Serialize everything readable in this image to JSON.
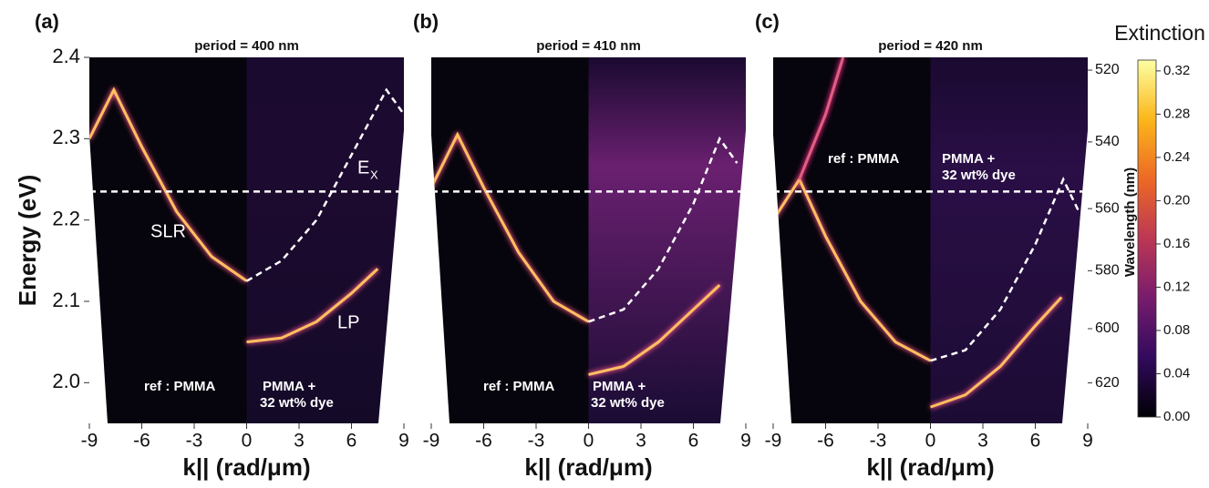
{
  "chart_data": [
    {
      "type": "heatmap",
      "panel_label": "(a)",
      "title": "period = 400 nm",
      "xlabel": "k|| (rad/μm)",
      "ylabel": "Energy (eV)",
      "xlim": [
        -9,
        9
      ],
      "xticks": [
        -9,
        -6,
        -3,
        0,
        3,
        6,
        9
      ],
      "ylim": [
        1.95,
        2.4
      ],
      "yticks": [
        {
          "value": 2,
          "label": "2.0"
        },
        {
          "value": 2.1,
          "label": "2.1"
        },
        {
          "value": 2.2,
          "label": "2.2"
        },
        {
          "value": 2.3,
          "label": "2.3"
        },
        {
          "value": 2.4,
          "label": "2.4"
        }
      ],
      "annotations": [
        "SLR",
        "LP",
        "ref : PMMA",
        "PMMA +",
        "32 wt% dye"
      ],
      "exciton_label": {
        "text": "E",
        "sub": "X"
      },
      "series": [
        {
          "color": "#ffc060",
          "dash": false,
          "x": [
            -9,
            -7.6,
            -6,
            -4,
            -2,
            0
          ],
          "values": [
            2.3,
            2.36,
            2.29,
            2.21,
            2.155,
            2.125
          ]
        },
        {
          "color": "#ffc060",
          "dash": false,
          "x": [
            0,
            2,
            4,
            6,
            7.5
          ],
          "values": [
            2.05,
            2.055,
            2.075,
            2.11,
            2.14
          ]
        },
        {
          "color": "#ffffff",
          "dash": true,
          "x": [
            0,
            2,
            4,
            6,
            8,
            9
          ],
          "values": [
            2.125,
            2.15,
            2.2,
            2.28,
            2.36,
            2.33
          ]
        },
        {
          "color": "#ffffff",
          "dash": true,
          "x": [
            -9,
            9
          ],
          "values": [
            2.235,
            2.235
          ]
        }
      ]
    },
    {
      "type": "heatmap",
      "panel_label": "(b)",
      "title": "period = 410 nm",
      "xlabel": "k|| (rad/μm)",
      "xlim": [
        -9,
        9
      ],
      "xticks": [
        -9,
        -6,
        -3,
        0,
        3,
        6,
        9
      ],
      "ylim": [
        1.95,
        2.4
      ],
      "annotations": [
        "ref : PMMA",
        "PMMA +",
        "32 wt% dye"
      ],
      "series": [
        {
          "color": "#ffc060",
          "dash": false,
          "x": [
            -9,
            -7.5,
            -6,
            -4,
            -2,
            0
          ],
          "values": [
            2.24,
            2.305,
            2.24,
            2.16,
            2.1,
            2.075
          ]
        },
        {
          "color": "#ffc060",
          "dash": false,
          "x": [
            0,
            2,
            4,
            6,
            7.5
          ],
          "values": [
            2.01,
            2.02,
            2.05,
            2.09,
            2.12
          ]
        },
        {
          "color": "#ffffff",
          "dash": true,
          "x": [
            0,
            2,
            4,
            6,
            7.5,
            8.5
          ],
          "values": [
            2.075,
            2.09,
            2.14,
            2.22,
            2.3,
            2.27
          ]
        },
        {
          "color": "#ffffff",
          "dash": true,
          "x": [
            -9,
            9
          ],
          "values": [
            2.235,
            2.235
          ]
        }
      ]
    },
    {
      "type": "heatmap",
      "panel_label": "(c)",
      "title": "period = 420 nm",
      "xlabel": "k|| (rad/μm)",
      "y2label": "Wavelength (nm)",
      "xlim": [
        -9,
        9
      ],
      "xticks": [
        -9,
        -6,
        -3,
        0,
        3,
        6,
        9
      ],
      "ylim": [
        1.95,
        2.4
      ],
      "y2ticks": [
        520,
        540,
        560,
        580,
        600,
        620
      ],
      "annotations": [
        "ref : PMMA",
        "PMMA +",
        "32 wt% dye"
      ],
      "series": [
        {
          "color": "#ffc060",
          "dash": false,
          "x": [
            -9,
            -7.5,
            -6,
            -4,
            -2,
            0
          ],
          "values": [
            2.2,
            2.25,
            2.18,
            2.1,
            2.05,
            2.027
          ]
        },
        {
          "color": "#e06080",
          "dash": false,
          "x": [
            -7.5,
            -6,
            -5
          ],
          "values": [
            2.25,
            2.33,
            2.4
          ]
        },
        {
          "color": "#ffc060",
          "dash": false,
          "x": [
            0,
            2,
            4,
            6,
            7.5
          ],
          "values": [
            1.97,
            1.985,
            2.02,
            2.07,
            2.105
          ]
        },
        {
          "color": "#ffffff",
          "dash": true,
          "x": [
            0,
            2,
            4,
            6,
            7.6,
            8.5
          ],
          "values": [
            2.027,
            2.04,
            2.09,
            2.17,
            2.25,
            2.21
          ]
        },
        {
          "color": "#ffffff",
          "dash": true,
          "x": [
            -9,
            9
          ],
          "values": [
            2.235,
            2.235
          ]
        }
      ]
    },
    {
      "type": "colorbar",
      "title": "Extinction",
      "ylim": [
        0,
        0.33
      ],
      "yticks": [
        {
          "value": 0,
          "label": "0.00"
        },
        0.04,
        0.08,
        0.12,
        0.16,
        {
          "value": 0.2,
          "label": "0.20"
        },
        0.24,
        0.28,
        0.32
      ],
      "colors": [
        "#000004",
        "#320a5e",
        "#781c6d",
        "#bc3754",
        "#ed6925",
        "#fbb61a",
        "#fcffa4"
      ]
    }
  ]
}
